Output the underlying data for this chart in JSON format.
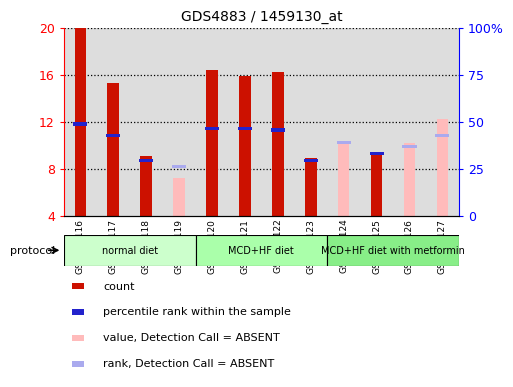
{
  "title": "GDS4883 / 1459130_at",
  "samples": [
    "GSM878116",
    "GSM878117",
    "GSM878118",
    "GSM878119",
    "GSM878120",
    "GSM878121",
    "GSM878122",
    "GSM878123",
    "GSM878124",
    "GSM878125",
    "GSM878126",
    "GSM878127"
  ],
  "protocols": [
    {
      "label": "normal diet",
      "start": 0,
      "end": 4,
      "color": "#ccffcc"
    },
    {
      "label": "MCD+HF diet",
      "start": 4,
      "end": 8,
      "color": "#aaffaa"
    },
    {
      "label": "MCD+HF diet with metformin",
      "start": 8,
      "end": 12,
      "color": "#88ee88"
    }
  ],
  "count_red": [
    20.0,
    15.3,
    9.1,
    null,
    16.4,
    15.9,
    16.2,
    8.9,
    null,
    9.3,
    null,
    null
  ],
  "count_pink": [
    null,
    null,
    null,
    7.2,
    null,
    null,
    null,
    null,
    10.3,
    null,
    10.2,
    12.2
  ],
  "percentile_blue": [
    11.8,
    10.8,
    8.7,
    null,
    11.4,
    11.4,
    11.3,
    8.7,
    null,
    9.3,
    null,
    null
  ],
  "percentile_lightblue": [
    null,
    null,
    null,
    8.2,
    null,
    null,
    null,
    null,
    10.2,
    null,
    9.9,
    10.8
  ],
  "ylim_left": [
    4,
    20
  ],
  "ylim_right": [
    0,
    100
  ],
  "yticks_left": [
    4,
    8,
    12,
    16,
    20
  ],
  "yticks_right": [
    0,
    25,
    50,
    75,
    100
  ],
  "ytick_labels_right": [
    "0",
    "25",
    "50",
    "75",
    "100%"
  ],
  "bar_width": 0.35,
  "red_color": "#cc1100",
  "pink_color": "#ffbbbb",
  "blue_color": "#2222cc",
  "lightblue_color": "#aaaaee",
  "bar_bg_color": "#dddddd",
  "grid_yticks": [
    8,
    12,
    16
  ]
}
